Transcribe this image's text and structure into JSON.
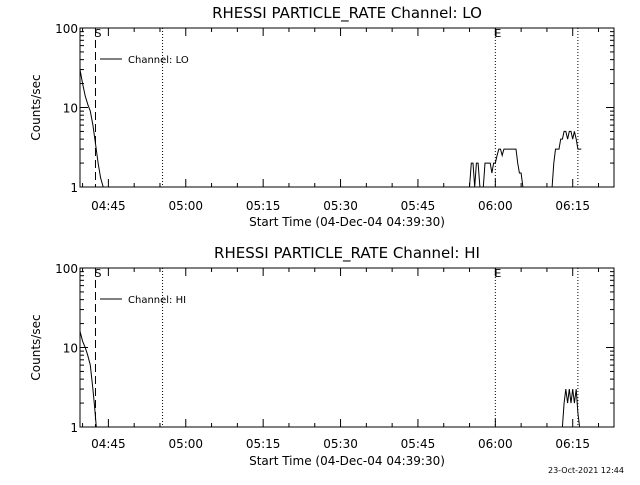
{
  "stamp": "23-Oct-2021 12:44",
  "chart_data": [
    {
      "type": "line",
      "title": "RHESSI PARTICLE_RATE Channel: LO",
      "xlabel": "Start Time (04-Dec-04 04:39:30)",
      "ylabel": "Counts/sec",
      "y_scale": "log",
      "ylim": [
        1,
        100
      ],
      "y_ticks": [
        {
          "v": 1,
          "label": "1"
        },
        {
          "v": 10,
          "label": "10"
        },
        {
          "v": 100,
          "label": "100"
        }
      ],
      "xlim": [
        "04:39:30",
        "06:23:00"
      ],
      "x_ticks": [
        "04:45",
        "05:00",
        "05:15",
        "05:30",
        "05:45",
        "06:00",
        "06:15"
      ],
      "legend": {
        "placement": "top-left",
        "label": "Channel: LO"
      },
      "markers": [
        {
          "time": "04:42:30",
          "style": "dashed",
          "label": "S"
        },
        {
          "time": "04:55:30",
          "style": "dotted",
          "label": ""
        },
        {
          "time": "06:00:00",
          "style": "dotted",
          "label": "E"
        },
        {
          "time": "06:16:00",
          "style": "dotted",
          "label": ""
        }
      ],
      "series": [
        {
          "segments": [
            {
              "x": [
                "04:39:30",
                "04:40:00",
                "04:40:30",
                "04:41:00",
                "04:41:30",
                "04:42:00",
                "04:42:30",
                "04:43:00",
                "04:43:30",
                "04:44:00"
              ],
              "y": [
                30,
                20,
                14,
                11,
                9,
                6,
                3.5,
                2,
                1.3,
                1
              ]
            },
            {
              "x": [
                "05:55:00",
                "05:55:20",
                "05:55:40",
                "05:56:00",
                "05:56:20",
                "05:56:40",
                "05:57:00",
                "05:57:20",
                "05:57:40",
                "05:58:00",
                "05:58:20",
                "05:58:40",
                "05:59:00",
                "05:59:20",
                "05:59:40",
                "06:00:00",
                "06:00:20",
                "06:00:40",
                "06:01:00",
                "06:01:20",
                "06:01:40",
                "06:02:00",
                "06:02:20",
                "06:02:40",
                "06:03:00",
                "06:03:20",
                "06:03:40",
                "06:04:00",
                "06:04:20",
                "06:04:40",
                "06:05:00",
                "06:05:20"
              ],
              "y": [
                1,
                2,
                2,
                1,
                2,
                2,
                1,
                1,
                1,
                2,
                2,
                2,
                2,
                1.5,
                2,
                2,
                2.5,
                3,
                3,
                2.5,
                3,
                3,
                3,
                3,
                3,
                3,
                3,
                3,
                2,
                1.5,
                1.5,
                1
              ]
            },
            {
              "x": [
                "06:11:00",
                "06:11:20",
                "06:11:40",
                "06:12:00",
                "06:12:20",
                "06:12:40",
                "06:13:00",
                "06:13:20",
                "06:13:40",
                "06:14:00",
                "06:14:20",
                "06:14:40",
                "06:15:00",
                "06:15:20",
                "06:15:40",
                "06:16:00",
                "06:16:20",
                "06:16:40"
              ],
              "y": [
                1,
                2,
                3,
                3,
                3,
                4,
                4,
                5,
                5,
                4,
                5,
                5,
                4,
                5,
                4,
                3,
                3,
                3
              ]
            }
          ]
        }
      ]
    },
    {
      "type": "line",
      "title": "RHESSI PARTICLE_RATE Channel: HI",
      "xlabel": "Start Time (04-Dec-04 04:39:30)",
      "ylabel": "Counts/sec",
      "y_scale": "log",
      "ylim": [
        1,
        100
      ],
      "y_ticks": [
        {
          "v": 1,
          "label": "1"
        },
        {
          "v": 10,
          "label": "10"
        },
        {
          "v": 100,
          "label": "100"
        }
      ],
      "xlim": [
        "04:39:30",
        "06:23:00"
      ],
      "x_ticks": [
        "04:45",
        "05:00",
        "05:15",
        "05:30",
        "05:45",
        "06:00",
        "06:15"
      ],
      "legend": {
        "placement": "top-left",
        "label": "Channel: HI"
      },
      "markers": [
        {
          "time": "04:42:30",
          "style": "dashed",
          "label": "S"
        },
        {
          "time": "04:55:30",
          "style": "dotted",
          "label": ""
        },
        {
          "time": "06:00:00",
          "style": "dotted",
          "label": "E"
        },
        {
          "time": "06:16:00",
          "style": "dotted",
          "label": ""
        }
      ],
      "series": [
        {
          "segments": [
            {
              "x": [
                "04:39:30",
                "04:40:00",
                "04:40:30",
                "04:41:00",
                "04:41:30",
                "04:42:00",
                "04:42:20",
                "04:42:40"
              ],
              "y": [
                16,
                12,
                10,
                8,
                6,
                3,
                1.8,
                1
              ]
            },
            {
              "x": [
                "06:13:00",
                "06:13:20",
                "06:13:40",
                "06:14:00",
                "06:14:20",
                "06:14:40",
                "06:15:00",
                "06:15:20",
                "06:15:40",
                "06:16:00",
                "06:16:20"
              ],
              "y": [
                1,
                2,
                3,
                2,
                3,
                2,
                3,
                2,
                3,
                1.5,
                1
              ]
            }
          ]
        }
      ]
    }
  ]
}
